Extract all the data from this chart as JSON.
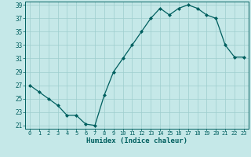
{
  "x": [
    0,
    1,
    2,
    3,
    4,
    5,
    6,
    7,
    8,
    9,
    10,
    11,
    12,
    13,
    14,
    15,
    16,
    17,
    18,
    19,
    20,
    21,
    22,
    23
  ],
  "y": [
    27,
    26,
    25,
    24,
    22.5,
    22.5,
    21.2,
    21.0,
    25.5,
    29,
    31,
    33,
    35,
    37,
    38.5,
    37.5,
    38.5,
    39,
    38.5,
    37.5,
    37,
    33,
    31.2,
    31.2
  ],
  "title": "",
  "xlabel": "Humidex (Indice chaleur)",
  "ylabel": "",
  "ylim": [
    20.5,
    39.5
  ],
  "xlim": [
    -0.5,
    23.5
  ],
  "yticks": [
    21,
    23,
    25,
    27,
    29,
    31,
    33,
    35,
    37,
    39
  ],
  "xticks": [
    0,
    1,
    2,
    3,
    4,
    5,
    6,
    7,
    8,
    9,
    10,
    11,
    12,
    13,
    14,
    15,
    16,
    17,
    18,
    19,
    20,
    21,
    22,
    23
  ],
  "line_color": "#005f5f",
  "marker_color": "#005f5f",
  "bg_color": "#c5e8e8",
  "grid_color": "#9dcece",
  "axes_bg": "#c5e8e8"
}
